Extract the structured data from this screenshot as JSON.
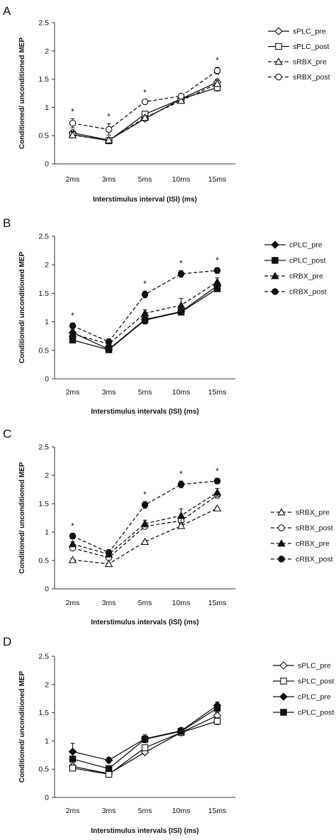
{
  "chart_data": [
    {
      "panel": "A",
      "type": "line",
      "categories": [
        "2ms",
        "3ms",
        "5ms",
        "10ms",
        "15ms"
      ],
      "xlabel": "Interstimulus interval (ISI) (ms)",
      "ylabel": "Conditioned/ unconditioned MEP",
      "ylim": [
        0,
        2.5
      ],
      "yticks": [
        "0",
        "0.5",
        "1",
        "1.5",
        "2",
        "2.5"
      ],
      "legend_position": "right",
      "significance": [
        "*",
        "*",
        "*",
        "",
        "*"
      ],
      "series": [
        {
          "name": "sPLC_pre",
          "marker": "diamond",
          "fill": "open",
          "dash": "solid",
          "values": [
            0.55,
            0.42,
            0.8,
            1.15,
            1.45
          ],
          "errors": [
            0.05,
            0.04,
            0.04,
            0.04,
            0.05
          ]
        },
        {
          "name": "sPLC_post",
          "marker": "square",
          "fill": "open",
          "dash": "solid",
          "values": [
            0.52,
            0.41,
            0.88,
            1.15,
            1.35
          ],
          "errors": [
            0.06,
            0.04,
            0.04,
            0.04,
            0.06
          ]
        },
        {
          "name": "sRBX_pre",
          "marker": "triangle",
          "fill": "open",
          "dash": "dashed",
          "values": [
            0.51,
            0.42,
            0.82,
            1.12,
            1.42
          ],
          "errors": [
            0.05,
            0.04,
            0.04,
            0.04,
            0.05
          ]
        },
        {
          "name": "sRBX_post",
          "marker": "circle",
          "fill": "open",
          "dash": "dashed",
          "values": [
            0.72,
            0.61,
            1.1,
            1.2,
            1.65
          ],
          "errors": [
            0.08,
            0.1,
            0.04,
            0.04,
            0.06
          ]
        }
      ]
    },
    {
      "panel": "B",
      "type": "line",
      "categories": [
        "2ms",
        "3ms",
        "5ms",
        "10ms",
        "15ms"
      ],
      "xlabel": "Interstimulus intervals (ISI) (ms)",
      "ylabel": "Conditioned/ unconditioned MEP",
      "ylim": [
        0,
        2.5
      ],
      "yticks": [
        "0",
        "0.5",
        "1",
        "1.5",
        "2",
        "2.5"
      ],
      "legend_position": "right",
      "significance": [
        "*",
        "",
        "*",
        "*",
        "*"
      ],
      "series": [
        {
          "name": "cPLC_pre",
          "marker": "diamond",
          "fill": "filled",
          "dash": "solid",
          "values": [
            0.81,
            0.52,
            1.04,
            1.18,
            1.63
          ],
          "errors": [
            0.05,
            0.04,
            0.07,
            0.05,
            0.05
          ]
        },
        {
          "name": "cPLC_post",
          "marker": "square",
          "fill": "filled",
          "dash": "solid",
          "values": [
            0.68,
            0.51,
            1.03,
            1.17,
            1.58
          ],
          "errors": [
            0.04,
            0.04,
            0.07,
            0.05,
            0.05
          ]
        },
        {
          "name": "cRBX_pre",
          "marker": "triangle",
          "fill": "filled",
          "dash": "dashed",
          "values": [
            0.79,
            0.61,
            1.15,
            1.29,
            1.7
          ],
          "errors": [
            0.05,
            0.05,
            0.06,
            0.12,
            0.07
          ]
        },
        {
          "name": "cRBX_post",
          "marker": "circle",
          "fill": "filled",
          "dash": "dashed",
          "values": [
            0.93,
            0.65,
            1.48,
            1.84,
            1.9
          ],
          "errors": [
            0.05,
            0.05,
            0.06,
            0.06,
            0.05
          ]
        }
      ]
    },
    {
      "panel": "C",
      "type": "line",
      "categories": [
        "2ms",
        "3ms",
        "5ms",
        "10ms",
        "15ms"
      ],
      "xlabel": "Interstimulus intervals (ISI) (ms)",
      "ylabel": "Conditioned/ unconditioned MEP",
      "ylim": [
        0,
        2.5
      ],
      "yticks": [
        "0",
        "0.5",
        "1",
        "1.5",
        "2",
        "2.5"
      ],
      "legend_position": "right",
      "significance": [
        "*",
        "",
        "*",
        "*",
        "*"
      ],
      "series": [
        {
          "name": "sRBX_pre",
          "marker": "triangle",
          "fill": "open",
          "dash": "dashed",
          "values": [
            0.51,
            0.44,
            0.83,
            1.11,
            1.42
          ],
          "errors": [
            0.02,
            0.02,
            0.02,
            0.03,
            0.02
          ]
        },
        {
          "name": "sRBX_post",
          "marker": "circle",
          "fill": "open",
          "dash": "dashed",
          "values": [
            0.72,
            0.55,
            1.1,
            1.2,
            1.65
          ],
          "errors": [
            0.03,
            0.04,
            0.04,
            0.05,
            0.05
          ]
        },
        {
          "name": "cRBX_pre",
          "marker": "triangle",
          "fill": "filled",
          "dash": "dashed",
          "values": [
            0.79,
            0.61,
            1.15,
            1.29,
            1.7
          ],
          "errors": [
            0.04,
            0.05,
            0.06,
            0.12,
            0.07
          ]
        },
        {
          "name": "cRBX_post",
          "marker": "circle",
          "fill": "filled",
          "dash": "dashed",
          "values": [
            0.93,
            0.64,
            1.48,
            1.84,
            1.9
          ],
          "errors": [
            0.05,
            0.05,
            0.06,
            0.06,
            0.05
          ]
        }
      ]
    },
    {
      "panel": "D",
      "type": "line",
      "categories": [
        "2ms",
        "3ms",
        "5ms",
        "10ms",
        "15ms"
      ],
      "xlabel": "Interstimulus intervals (ISI) (ms)",
      "ylabel": "Conditioned/ unconditioned MEP",
      "ylim": [
        0,
        2.5
      ],
      "yticks": [
        "0",
        "0.5",
        "1",
        "1.5",
        "2",
        "2.5"
      ],
      "legend_position": "right",
      "significance": [
        "",
        "",
        "",
        "",
        ""
      ],
      "series": [
        {
          "name": "sPLC_pre",
          "marker": "diamond",
          "fill": "open",
          "dash": "solid",
          "values": [
            0.55,
            0.42,
            0.8,
            1.15,
            1.45
          ],
          "errors": [
            0.05,
            0.04,
            0.04,
            0.04,
            0.05
          ]
        },
        {
          "name": "sPLC_post",
          "marker": "square",
          "fill": "open",
          "dash": "solid",
          "values": [
            0.52,
            0.41,
            0.88,
            1.15,
            1.35
          ],
          "errors": [
            0.05,
            0.04,
            0.05,
            0.04,
            0.06
          ]
        },
        {
          "name": "cPLC_pre",
          "marker": "diamond",
          "fill": "filled",
          "dash": "solid",
          "values": [
            0.81,
            0.66,
            1.04,
            1.18,
            1.63
          ],
          "errors": [
            0.15,
            0.05,
            0.07,
            0.06,
            0.06
          ]
        },
        {
          "name": "cPLC_post",
          "marker": "square",
          "fill": "filled",
          "dash": "solid",
          "values": [
            0.68,
            0.51,
            1.03,
            1.17,
            1.58
          ],
          "errors": [
            0.05,
            0.05,
            0.06,
            0.05,
            0.06
          ]
        }
      ]
    }
  ]
}
